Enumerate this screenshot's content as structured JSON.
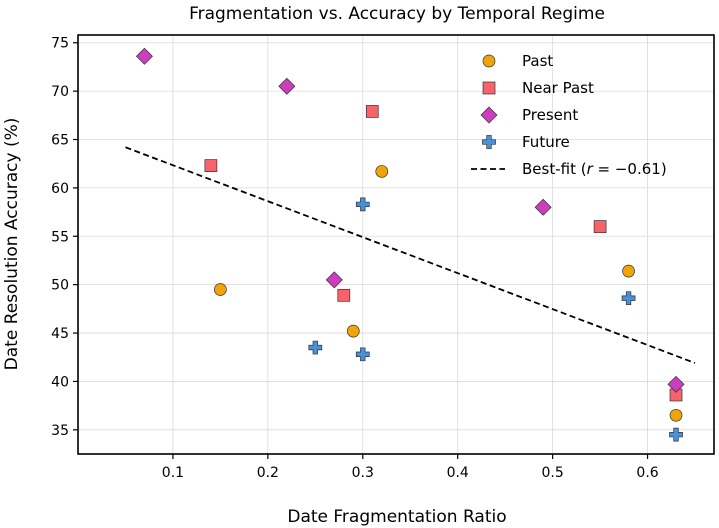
{
  "chart_data": {
    "type": "scatter",
    "title": "Fragmentation vs. Accuracy by Temporal Regime",
    "xlabel": "Date Fragmentation Ratio",
    "ylabel": "Date Resolution Accuracy (%)",
    "xlim": [
      0.0,
      0.67
    ],
    "ylim": [
      32.5,
      75.8
    ],
    "xticks": [
      0.1,
      0.2,
      0.3,
      0.4,
      0.5,
      0.6
    ],
    "yticks": [
      35,
      40,
      45,
      50,
      55,
      60,
      65,
      70,
      75
    ],
    "grid": true,
    "legend_position": "top-right",
    "series": [
      {
        "name": "Past",
        "marker": "circle",
        "color": "#f0a30a",
        "points": [
          [
            0.15,
            49.5
          ],
          [
            0.29,
            45.2
          ],
          [
            0.32,
            61.7
          ],
          [
            0.58,
            51.4
          ],
          [
            0.63,
            36.5
          ]
        ]
      },
      {
        "name": "Near Past",
        "marker": "square",
        "color": "#f8636b",
        "points": [
          [
            0.14,
            62.3
          ],
          [
            0.28,
            48.9
          ],
          [
            0.31,
            67.9
          ],
          [
            0.55,
            56.0
          ],
          [
            0.63,
            38.6
          ]
        ]
      },
      {
        "name": "Present",
        "marker": "diamond",
        "color": "#cc3dbf",
        "points": [
          [
            0.07,
            73.6
          ],
          [
            0.22,
            70.5
          ],
          [
            0.27,
            50.5
          ],
          [
            0.49,
            58.0
          ],
          [
            0.63,
            39.7
          ]
        ]
      },
      {
        "name": "Future",
        "marker": "plus",
        "color": "#4a90d9",
        "points": [
          [
            0.25,
            43.5
          ],
          [
            0.3,
            42.8
          ],
          [
            0.3,
            58.3
          ],
          [
            0.58,
            48.6
          ],
          [
            0.63,
            34.5
          ]
        ]
      }
    ],
    "fit_line": {
      "name_prefix": "Best-fit (",
      "name_var": "r",
      "name_value": " = −0.61)",
      "points": [
        [
          0.05,
          64.2
        ],
        [
          0.65,
          41.9
        ]
      ]
    }
  }
}
